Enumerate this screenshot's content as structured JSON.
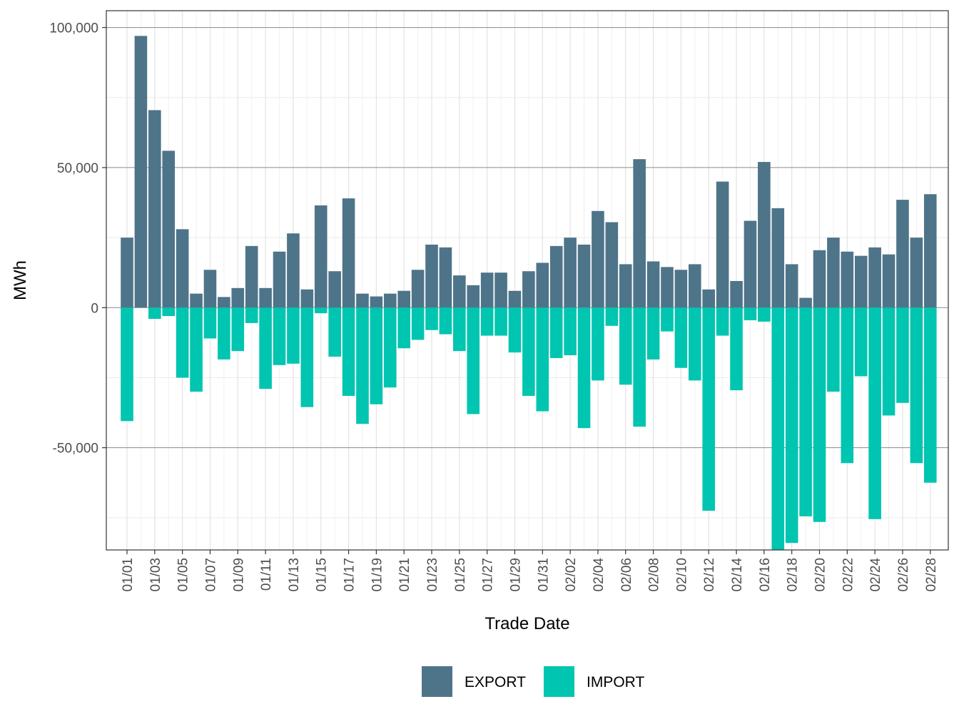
{
  "chart_data": {
    "type": "bar",
    "stacked": "diverging",
    "xlabel": "Trade Date",
    "ylabel": "MWh",
    "ylim": [
      -86500,
      106000
    ],
    "yticks": [
      -50000,
      0,
      50000,
      100000
    ],
    "ytick_labels": [
      "-50,000",
      "0",
      "50,000",
      "100,000"
    ],
    "grid": true,
    "legend_position": "bottom",
    "categories": [
      "01/01",
      "01/02",
      "01/03",
      "01/04",
      "01/05",
      "01/06",
      "01/07",
      "01/08",
      "01/09",
      "01/10",
      "01/11",
      "01/12",
      "01/13",
      "01/14",
      "01/15",
      "01/16",
      "01/17",
      "01/18",
      "01/19",
      "01/20",
      "01/21",
      "01/22",
      "01/23",
      "01/24",
      "01/25",
      "01/26",
      "01/27",
      "01/28",
      "01/29",
      "01/30",
      "01/31",
      "02/01",
      "02/02",
      "02/03",
      "02/04",
      "02/05",
      "02/06",
      "02/07",
      "02/08",
      "02/09",
      "02/10",
      "02/11",
      "02/12",
      "02/13",
      "02/14",
      "02/15",
      "02/16",
      "02/17",
      "02/18",
      "02/19",
      "02/20",
      "02/21",
      "02/22",
      "02/23",
      "02/24",
      "02/25",
      "02/26",
      "02/27",
      "02/28"
    ],
    "xtick_labels": [
      "01/01",
      "01/03",
      "01/05",
      "01/07",
      "01/09",
      "01/11",
      "01/13",
      "01/15",
      "01/17",
      "01/19",
      "01/21",
      "01/23",
      "01/25",
      "01/27",
      "01/29",
      "01/31",
      "02/02",
      "02/04",
      "02/06",
      "02/08",
      "02/10",
      "02/12",
      "02/14",
      "02/16",
      "02/18",
      "02/20",
      "02/22",
      "02/24",
      "02/26",
      "02/28"
    ],
    "series": [
      {
        "name": "EXPORT",
        "color": "#4e7489",
        "values": [
          25000,
          97000,
          70500,
          56000,
          28000,
          5000,
          13500,
          3800,
          7000,
          22000,
          7000,
          20000,
          26500,
          6500,
          36500,
          13000,
          39000,
          5000,
          4000,
          5000,
          6000,
          13500,
          22500,
          21500,
          11500,
          8000,
          12500,
          12500,
          6000,
          13000,
          16000,
          22000,
          25000,
          22500,
          34500,
          30500,
          15500,
          53000,
          16500,
          14500,
          13500,
          15500,
          6500,
          45000,
          9500,
          31000,
          52000,
          35500,
          15500,
          3500,
          20500,
          25000,
          20000,
          18500,
          21500,
          19000,
          38500,
          25000,
          40500
        ]
      },
      {
        "name": "IMPORT",
        "color": "#00c5b0",
        "values": [
          -40500,
          0,
          -4000,
          -3000,
          -25000,
          -30000,
          -11000,
          -18500,
          -15500,
          -5500,
          -29000,
          -20500,
          -20000,
          -35500,
          -2000,
          -17500,
          -31500,
          -41500,
          -34500,
          -28500,
          -14500,
          -11500,
          -8000,
          -9500,
          -15500,
          -38000,
          -10000,
          -10000,
          -16000,
          -31500,
          -37000,
          -18000,
          -17000,
          -43000,
          -26000,
          -6500,
          -27500,
          -42500,
          -18500,
          -8500,
          -21500,
          -26000,
          -72500,
          -10000,
          -29500,
          -4500,
          -5000,
          -86500,
          -84000,
          -74500,
          -76500,
          -30000,
          -55500,
          -24500,
          -75500,
          -38500,
          -34000,
          -55500,
          -62500
        ]
      }
    ]
  }
}
